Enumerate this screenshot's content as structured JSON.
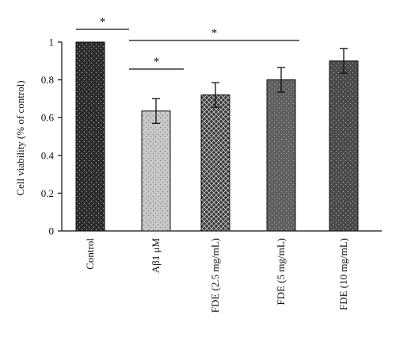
{
  "chart_data": {
    "type": "bar",
    "categories": [
      "Control",
      "Aβ1 μM",
      "FDE (2.5 mg/mL)",
      "FDE (5 mg/mL)",
      "FDE (10 mg/mL)"
    ],
    "values": [
      1.0,
      0.635,
      0.72,
      0.8,
      0.9
    ],
    "errors": [
      0.0,
      0.065,
      0.065,
      0.065,
      0.065
    ],
    "ylabel": "Cell viability (% of control)",
    "xlabel": "",
    "title": "",
    "ylim": [
      0,
      1
    ],
    "yticks": [
      "0",
      "0.2",
      "0.4",
      "0.6",
      "0.8",
      "1"
    ],
    "grid": false,
    "bar_colors": [
      "#2b2b2b",
      "#c8c8c8",
      "#3a3a3a",
      "#5f5f5f",
      "#4a4a4a"
    ],
    "bar_patterns": [
      "dots-light",
      "dots-dark",
      "diamond-mesh",
      "dots-light",
      "dots-light"
    ],
    "significance": [
      {
        "from": 0,
        "to": 1,
        "label": "*"
      },
      {
        "from": 1,
        "to": 3,
        "label": "*"
      },
      {
        "from": 1,
        "to": 2,
        "label": "*"
      }
    ]
  }
}
